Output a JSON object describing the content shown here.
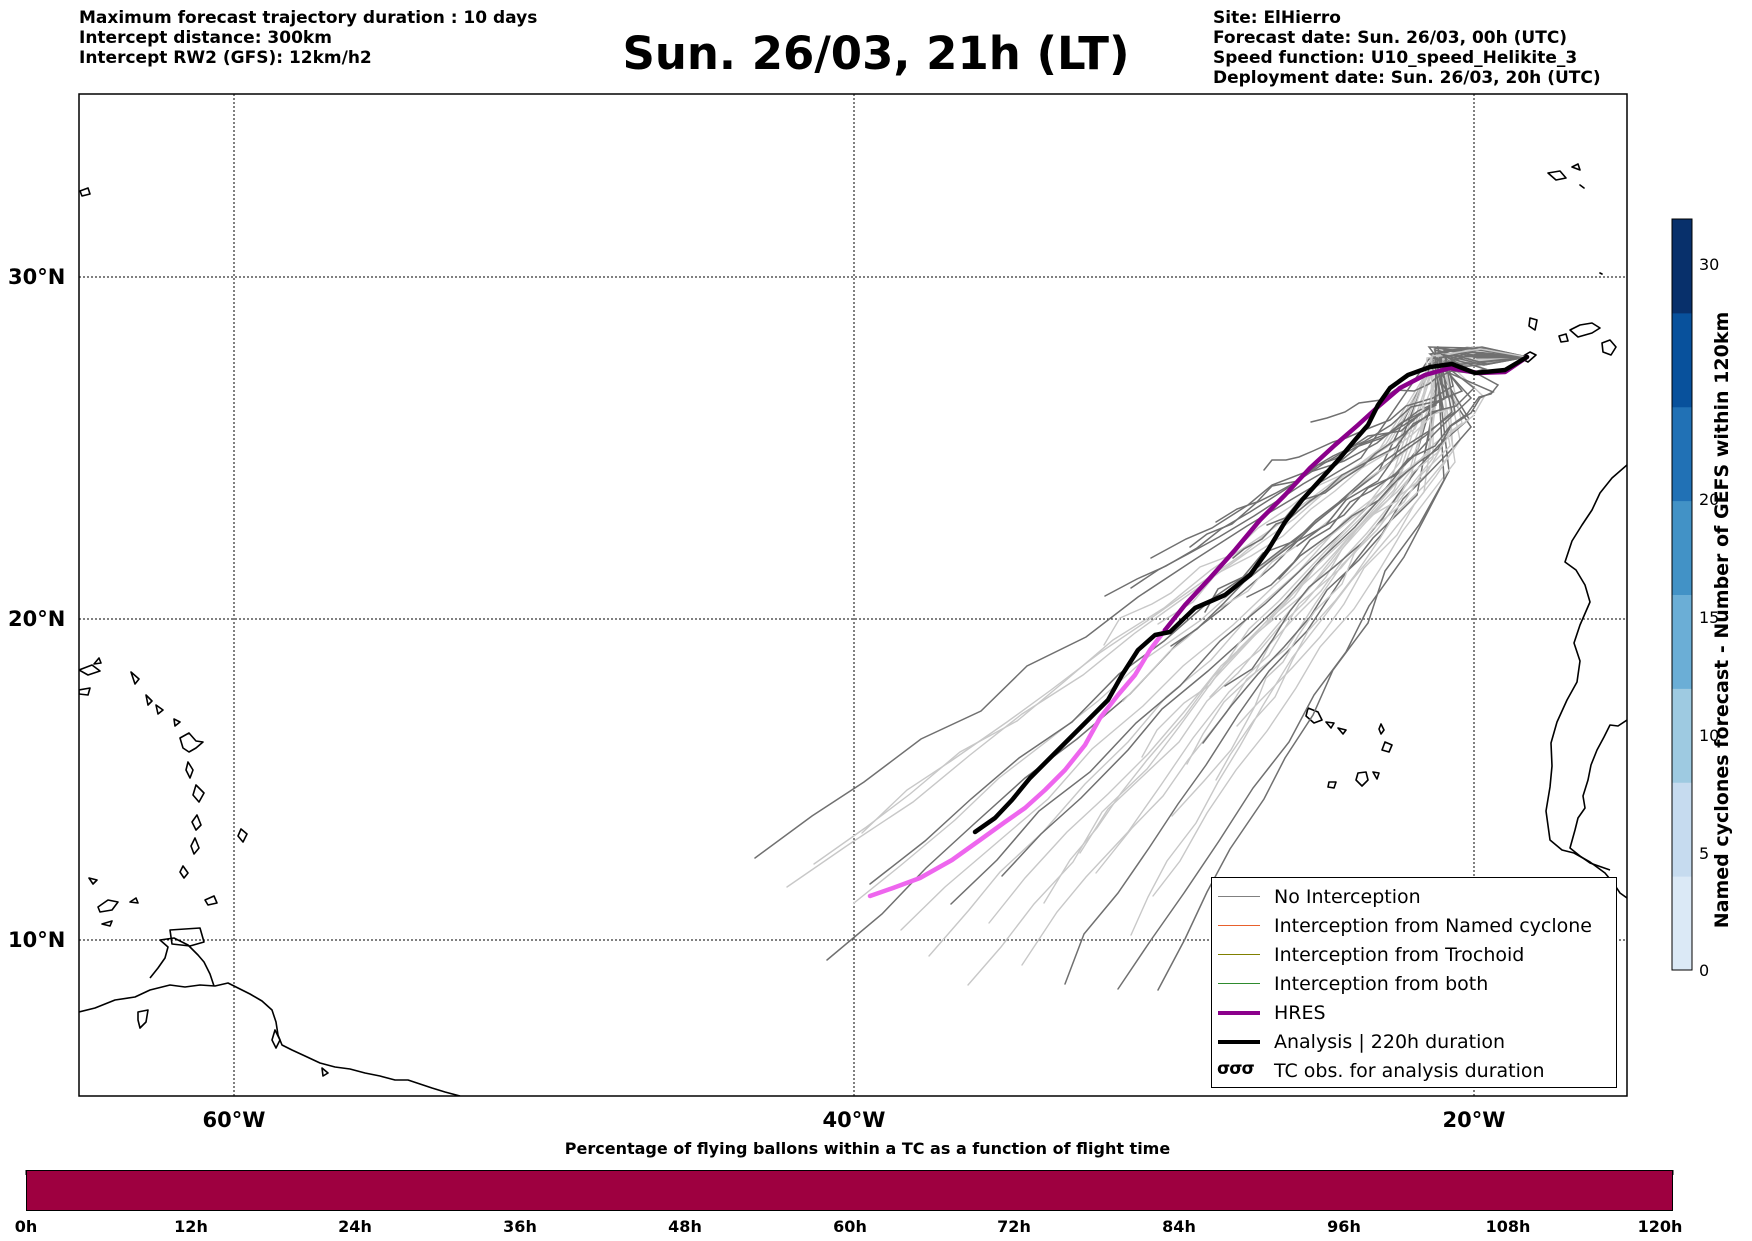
{
  "header": {
    "left_lines": [
      "Maximum forecast trajectory duration : 10 days",
      "Intercept distance: 300km",
      "Intercept RW2 (GFS):  12km/h2"
    ],
    "title": "Sun. 26/03, 21h (LT)",
    "right_lines": [
      "Site: ElHierro",
      "Forecast date: Sun. 26/03, 00h (UTC)",
      "Speed function: U10_speed_Helikite_3",
      "Deployment date: Sun. 26/03, 20h (UTC)"
    ]
  },
  "map": {
    "lat_labels": [
      "30°N",
      "20°N",
      "10°N"
    ],
    "lon_labels": [
      "60°W",
      "40°W",
      "20°W"
    ],
    "colors": {
      "ensemble_dark": "#707070",
      "ensemble_light": "#c8c8c8",
      "hres": "#8b008b",
      "hres_early": "#ee66ee",
      "analysis": "#000000"
    }
  },
  "legend": {
    "items": [
      {
        "label": "No Interception",
        "color": "#808080",
        "width": 1.5
      },
      {
        "label": "Interception from Named cyclone",
        "color": "#e8602c",
        "width": 1.5
      },
      {
        "label": "Interception from Trochoid",
        "color": "#808000",
        "width": 1.5
      },
      {
        "label": "Interception from both",
        "color": "#2e8b2e",
        "width": 1.5
      },
      {
        "label": "HRES",
        "color": "#8b008b",
        "width": 4
      },
      {
        "label": "Analysis | 220h duration",
        "color": "#000000",
        "width": 4
      }
    ],
    "tc_symbol": "σσσ",
    "tc_label": "TC obs. for analysis duration"
  },
  "colorbar": {
    "label": "Named cyclones forecast - Number of GEFS within 120km",
    "ticks": [
      "30",
      "20",
      "15",
      "10",
      "5",
      "0"
    ],
    "colors": [
      "#dbe9f6",
      "#c6dbef",
      "#9ecae1",
      "#6baed6",
      "#4292c6",
      "#2171b5",
      "#08519c",
      "#08306b"
    ]
  },
  "bottom": {
    "title": "Percentage of flying ballons within a TC as a function of flight time",
    "bar_color": "#9e0040",
    "ticks": [
      "0h",
      "12h",
      "24h",
      "36h",
      "48h",
      "60h",
      "72h",
      "84h",
      "96h",
      "108h",
      "120h"
    ]
  }
}
